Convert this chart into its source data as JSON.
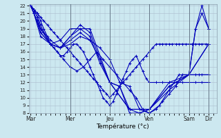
{
  "xlabel": "Température (°c)",
  "background_color": "#cce8f0",
  "grid_color": "#aabbcc",
  "line_color": "#0000bb",
  "day_labels": [
    "Mar",
    "Mer",
    "Jeu",
    "Ven",
    "Sam",
    "Dir"
  ],
  "day_positions": [
    0.0,
    1.0,
    2.0,
    3.0,
    4.0,
    4.5
  ],
  "xlim": [
    -0.05,
    4.7
  ],
  "ylim": [
    8,
    22.2
  ],
  "yticks": [
    8,
    9,
    10,
    11,
    12,
    13,
    14,
    15,
    16,
    17,
    18,
    19,
    20,
    21,
    22
  ],
  "lines": [
    {
      "x": [
        0,
        0.08,
        0.17,
        0.25,
        0.33,
        0.42,
        0.5,
        0.58,
        0.67,
        0.75,
        0.83,
        0.92,
        1.0,
        1.08,
        1.17,
        1.25,
        1.33,
        1.42,
        1.5,
        1.58,
        1.67,
        1.75,
        1.83,
        1.92,
        2.0,
        2.08,
        2.17,
        2.25,
        2.33,
        2.42,
        2.5,
        2.58,
        2.67,
        2.75,
        2.83,
        2.92,
        3.0,
        3.08,
        3.17,
        3.25,
        3.33,
        3.42,
        3.5,
        3.58,
        3.67,
        3.75,
        3.83,
        3.92,
        4.0,
        4.08,
        4.17,
        4.25,
        4.33,
        4.42,
        4.5
      ],
      "y": [
        22,
        21.5,
        21,
        20.5,
        20,
        19.5,
        19,
        18.5,
        18,
        17.5,
        17,
        16.5,
        16,
        15.5,
        15,
        14.5,
        14,
        13.5,
        13,
        12.5,
        12,
        11.5,
        11,
        10.5,
        10,
        10.5,
        11,
        11.5,
        12,
        12.5,
        13,
        13.5,
        14,
        14.5,
        15,
        15.5,
        16,
        16.5,
        17,
        17,
        17,
        17,
        17,
        17,
        17,
        17,
        17,
        17,
        17,
        17,
        17,
        17,
        17,
        17,
        17
      ]
    },
    {
      "x": [
        0,
        0.08,
        0.17,
        0.25,
        0.33,
        0.42,
        0.5,
        0.58,
        0.67,
        0.75,
        0.83,
        0.92,
        1.0,
        1.08,
        1.17,
        1.25,
        1.33,
        1.42,
        1.5,
        1.58,
        1.67,
        1.75,
        1.83,
        1.92,
        2.0,
        2.08,
        2.17,
        2.25,
        2.33,
        2.42,
        2.5,
        2.58,
        2.67,
        2.75,
        2.83,
        2.92,
        3.0,
        3.17,
        3.33,
        3.5,
        3.67,
        3.83,
        4.0,
        4.17,
        4.33,
        4.5
      ],
      "y": [
        22,
        21.5,
        21,
        20,
        19,
        18,
        17,
        16.5,
        16,
        15.5,
        15.5,
        16,
        16.5,
        17,
        17,
        16.5,
        16,
        15,
        14,
        13,
        12,
        11,
        10,
        9.5,
        9,
        9.5,
        10.5,
        11.5,
        12.5,
        13.5,
        14.5,
        15,
        15.5,
        14.5,
        13.5,
        12.5,
        12,
        12,
        12,
        12,
        12,
        12,
        12,
        12,
        12,
        12
      ]
    },
    {
      "x": [
        0,
        0.08,
        0.17,
        0.25,
        0.33,
        0.5,
        0.67,
        0.83,
        1.0,
        1.17,
        1.33,
        1.5,
        1.67,
        1.83,
        2.0,
        2.17,
        2.33,
        2.5,
        2.67,
        2.83,
        3.0,
        3.17,
        3.33,
        3.5,
        3.67,
        3.83,
        4.0,
        4.17,
        4.33,
        4.5
      ],
      "y": [
        22,
        21.5,
        20.5,
        19.5,
        18.5,
        17,
        16,
        15,
        14,
        13.5,
        14,
        15,
        16,
        15,
        14,
        13,
        12,
        11,
        10,
        8.5,
        8,
        8.5,
        9.5,
        10.5,
        11.5,
        13,
        13,
        13,
        13,
        13
      ]
    },
    {
      "x": [
        0,
        0.08,
        0.17,
        0.25,
        0.5,
        0.75,
        1.0,
        1.25,
        1.5,
        1.75,
        2.0,
        2.25,
        2.5,
        2.75,
        3.0,
        3.25,
        3.5,
        3.75,
        4.0,
        4.25,
        4.5
      ],
      "y": [
        22,
        21.5,
        20.5,
        19,
        17.5,
        16.5,
        17,
        18,
        17.5,
        16.5,
        15,
        12,
        11.5,
        8.5,
        8,
        9,
        11,
        13,
        13,
        13,
        13
      ]
    },
    {
      "x": [
        0,
        0.08,
        0.17,
        0.25,
        0.5,
        0.75,
        1.0,
        1.25,
        1.5,
        1.75,
        2.0,
        2.25,
        2.5,
        2.75,
        3.0,
        3.5,
        4.0,
        4.5
      ],
      "y": [
        22,
        21,
        20,
        18.5,
        17,
        16.5,
        17.5,
        18.5,
        17.5,
        15,
        12,
        11.5,
        8,
        8,
        8.5,
        11,
        13,
        17
      ]
    },
    {
      "x": [
        0,
        0.08,
        0.25,
        0.5,
        0.75,
        1.0,
        1.25,
        1.5,
        1.75,
        2.0,
        2.25,
        2.5,
        2.75,
        3.0,
        3.5,
        4.0,
        4.5
      ],
      "y": [
        22,
        21,
        19,
        17,
        16.5,
        18,
        19,
        18,
        14.5,
        12,
        11.5,
        8.5,
        8,
        8.5,
        11.5,
        13,
        17
      ]
    },
    {
      "x": [
        0,
        0.08,
        0.25,
        0.5,
        0.75,
        1.0,
        1.25,
        1.5,
        1.75,
        2.0,
        2.5,
        3.0,
        3.5,
        4.0,
        4.17,
        4.33,
        4.5
      ],
      "y": [
        22,
        21,
        18.5,
        17,
        16.5,
        18,
        19.5,
        18.5,
        15,
        12,
        8.5,
        8.5,
        11.5,
        13,
        19,
        21,
        19
      ]
    },
    {
      "x": [
        0,
        0.08,
        0.25,
        0.5,
        0.75,
        1.0,
        1.5,
        2.0,
        2.5,
        3.0,
        3.5,
        4.0,
        4.17,
        4.33,
        4.5
      ],
      "y": [
        22,
        21,
        18,
        17,
        17.5,
        19,
        19,
        12,
        8.5,
        8.5,
        12,
        13,
        19,
        22,
        19
      ]
    }
  ]
}
